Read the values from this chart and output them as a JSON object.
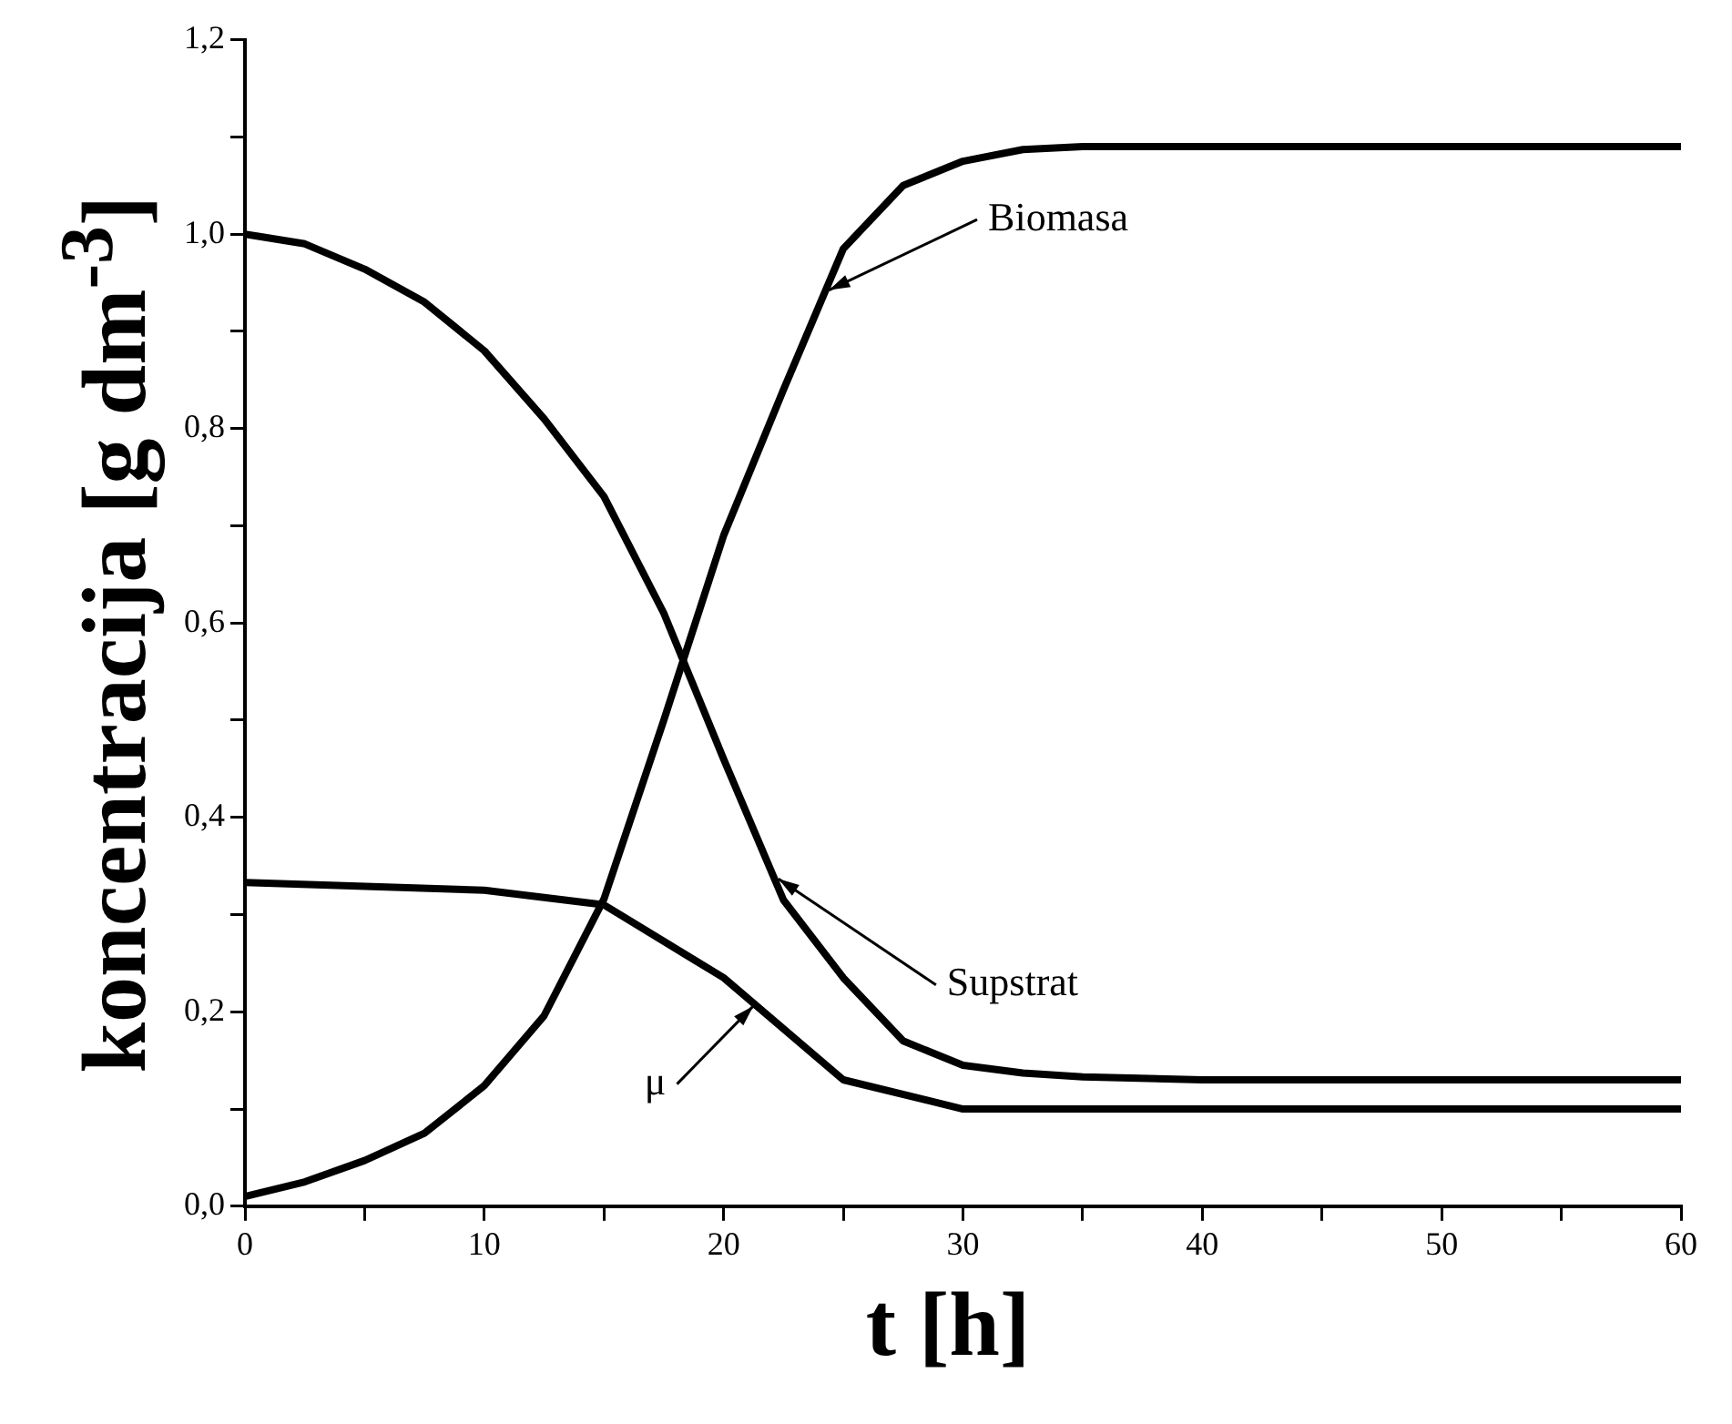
{
  "chart_data": {
    "type": "line",
    "xlabel": "t [h]",
    "ylabel": "koncentracija [g dm$^{-3}$]",
    "xlim": [
      0,
      60
    ],
    "ylim": [
      0,
      1.2
    ],
    "xticks": [
      0,
      {
        "value": 5,
        "label": null
      },
      10,
      {
        "value": 15,
        "label": null
      },
      20,
      {
        "value": 25,
        "label": null
      },
      30,
      {
        "value": 35,
        "label": null
      },
      40,
      {
        "value": 45,
        "label": null
      },
      50,
      {
        "value": 55,
        "label": null
      },
      60
    ],
    "yticks": [
      {
        "value": 0,
        "label": "0,0"
      },
      {
        "value": 0.1,
        "label": null
      },
      {
        "value": 0.2,
        "label": "0,2"
      },
      {
        "value": 0.3,
        "label": null
      },
      {
        "value": 0.4,
        "label": "0,4"
      },
      {
        "value": 0.5,
        "label": null
      },
      {
        "value": 0.6,
        "label": "0,6"
      },
      {
        "value": 0.7,
        "label": null
      },
      {
        "value": 0.8,
        "label": "0,8"
      },
      {
        "value": 0.9,
        "label": null
      },
      {
        "value": 1.0,
        "label": "1,0"
      },
      {
        "value": 1.1,
        "label": null
      },
      {
        "value": 1.2,
        "label": "1,2"
      }
    ],
    "grid": false,
    "legend": false,
    "marker": "none",
    "line_style": "solid",
    "series": [
      {
        "color": "#000000",
        "x": [
          0,
          2.5,
          5,
          7.5,
          10,
          12.5,
          15,
          17.5,
          20,
          22.5,
          25,
          27.5,
          30,
          32.5,
          35,
          40,
          50,
          60
        ],
        "values": [
          0.01,
          0.025,
          0.047,
          0.075,
          0.124,
          0.196,
          0.316,
          0.5,
          0.69,
          0.84,
          0.985,
          1.05,
          1.075,
          1.087,
          1.09,
          1.09,
          1.09,
          1.09
        ]
      },
      {
        "color": "#000000",
        "x": [
          0,
          2.5,
          5,
          7.5,
          10,
          12.5,
          15,
          17.5,
          20,
          22.5,
          25,
          27.5,
          30,
          32.5,
          35,
          40,
          50,
          60
        ],
        "values": [
          1.0,
          0.99,
          0.964,
          0.93,
          0.88,
          0.81,
          0.73,
          0.61,
          0.46,
          0.315,
          0.235,
          0.17,
          0.145,
          0.137,
          0.133,
          0.13,
          0.13,
          0.13
        ]
      },
      {
        "color": "#000000",
        "x": [
          0,
          10,
          15,
          20,
          25,
          30,
          60
        ],
        "values": [
          0.333,
          0.325,
          0.31,
          0.235,
          0.13,
          0.1,
          0.1
        ]
      }
    ],
    "annotations": [
      {
        "text": "Biomasa",
        "x": 24.2,
        "y": 0.94
      },
      {
        "text": "Supstrat",
        "x": 22.1,
        "y": 0.34
      },
      {
        "text": "μ",
        "x": 21.4,
        "y": 0.21
      }
    ]
  }
}
